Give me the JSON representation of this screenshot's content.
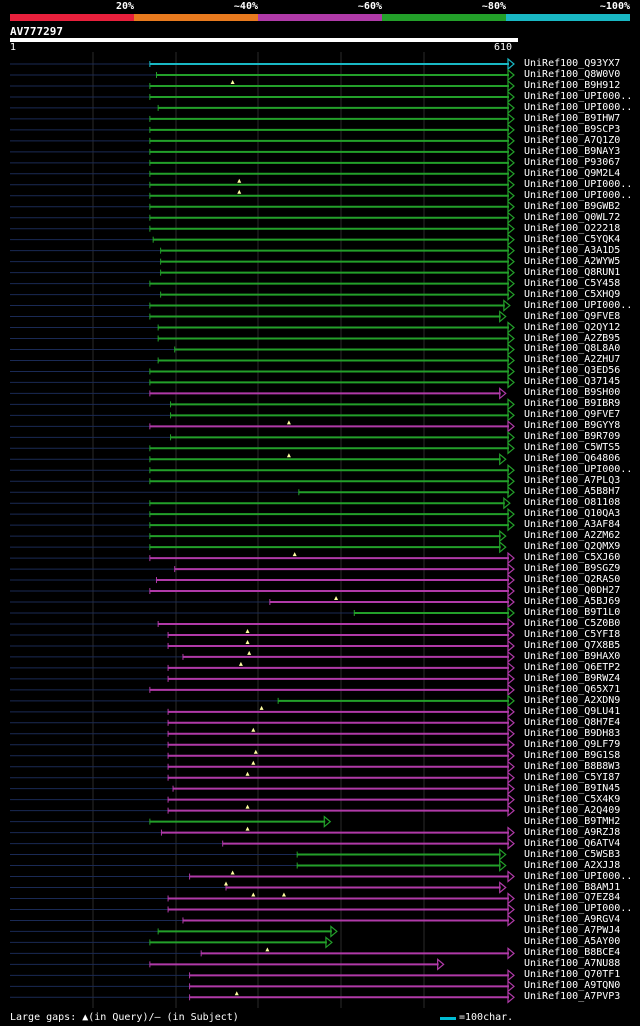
{
  "legend": [
    {
      "label": "20%",
      "color": "#e8203c"
    },
    {
      "label": "~40%",
      "color": "#e87a1e"
    },
    {
      "label": "~60%",
      "color": "#b03aa8"
    },
    {
      "label": "~80%",
      "color": "#23a02a"
    },
    {
      "label": "~100%",
      "color": "#19b8c4"
    }
  ],
  "query": {
    "name": "AV777297",
    "start": "1",
    "end": "610",
    "length": 610
  },
  "footer": {
    "gaps_text": "Large gaps: ▲(in Query)/– (in Subject)",
    "scale_text": "=100char."
  },
  "hits": [
    {
      "name": "UniRef100_Q93YX7",
      "start": 170,
      "end": 610,
      "color": "cyan",
      "arrow": true,
      "marks": []
    },
    {
      "name": "UniRef100_Q8W0V0",
      "start": 178,
      "end": 610,
      "color": "green",
      "arrow": true,
      "marks": []
    },
    {
      "name": "UniRef100_B9H912",
      "start": 170,
      "end": 610,
      "color": "green",
      "arrow": true,
      "marks": [
        270
      ]
    },
    {
      "name": "UniRef100_UPI000..",
      "start": 170,
      "end": 610,
      "color": "green",
      "arrow": true,
      "marks": []
    },
    {
      "name": "UniRef100_UPI000..",
      "start": 180,
      "end": 610,
      "color": "green",
      "arrow": true,
      "marks": []
    },
    {
      "name": "UniRef100_B9IHW7",
      "start": 170,
      "end": 610,
      "color": "green",
      "arrow": true,
      "marks": []
    },
    {
      "name": "UniRef100_B9SCP3",
      "start": 170,
      "end": 610,
      "color": "green",
      "arrow": true,
      "marks": []
    },
    {
      "name": "UniRef100_A7Q1Z0",
      "start": 170,
      "end": 610,
      "color": "green",
      "arrow": true,
      "marks": []
    },
    {
      "name": "UniRef100_B9NAY3",
      "start": 170,
      "end": 610,
      "color": "green",
      "arrow": true,
      "marks": []
    },
    {
      "name": "UniRef100_P93067",
      "start": 170,
      "end": 610,
      "color": "green",
      "arrow": true,
      "marks": []
    },
    {
      "name": "UniRef100_Q9M2L4",
      "start": 170,
      "end": 610,
      "color": "green",
      "arrow": true,
      "marks": []
    },
    {
      "name": "UniRef100_UPI000..",
      "start": 170,
      "end": 610,
      "color": "green",
      "arrow": true,
      "marks": [
        278
      ]
    },
    {
      "name": "UniRef100_UPI000..",
      "start": 170,
      "end": 610,
      "color": "green",
      "arrow": true,
      "marks": [
        278
      ]
    },
    {
      "name": "UniRef100_B9GWB2",
      "start": 170,
      "end": 610,
      "color": "green",
      "arrow": true,
      "marks": []
    },
    {
      "name": "UniRef100_Q0WL72",
      "start": 170,
      "end": 610,
      "color": "green",
      "arrow": true,
      "marks": []
    },
    {
      "name": "UniRef100_O22218",
      "start": 170,
      "end": 610,
      "color": "green",
      "arrow": true,
      "marks": []
    },
    {
      "name": "UniRef100_C5YQK4",
      "start": 174,
      "end": 610,
      "color": "green",
      "arrow": true,
      "marks": []
    },
    {
      "name": "UniRef100_A3A1D5",
      "start": 183,
      "end": 610,
      "color": "green",
      "arrow": true,
      "marks": []
    },
    {
      "name": "UniRef100_A2WYW5",
      "start": 183,
      "end": 610,
      "color": "green",
      "arrow": true,
      "marks": []
    },
    {
      "name": "UniRef100_Q8RUN1",
      "start": 183,
      "end": 610,
      "color": "green",
      "arrow": true,
      "marks": []
    },
    {
      "name": "UniRef100_C5Y458",
      "start": 170,
      "end": 610,
      "color": "green",
      "arrow": true,
      "marks": []
    },
    {
      "name": "UniRef100_C5XHQ9",
      "start": 183,
      "end": 610,
      "color": "green",
      "arrow": true,
      "marks": []
    },
    {
      "name": "UniRef100_UPI000..",
      "start": 170,
      "end": 605,
      "color": "green",
      "arrow": true,
      "marks": []
    },
    {
      "name": "UniRef100_Q9FVE8",
      "start": 170,
      "end": 600,
      "color": "green",
      "arrow": true,
      "marks": []
    },
    {
      "name": "UniRef100_Q2QY12",
      "start": 180,
      "end": 610,
      "color": "green",
      "arrow": true,
      "marks": []
    },
    {
      "name": "UniRef100_A2ZB95",
      "start": 180,
      "end": 610,
      "color": "green",
      "arrow": true,
      "marks": []
    },
    {
      "name": "UniRef100_Q8L8A0",
      "start": 200,
      "end": 610,
      "color": "green",
      "arrow": true,
      "marks": []
    },
    {
      "name": "UniRef100_A2ZHU7",
      "start": 180,
      "end": 610,
      "color": "green",
      "arrow": true,
      "marks": []
    },
    {
      "name": "UniRef100_Q3ED56",
      "start": 170,
      "end": 610,
      "color": "green",
      "arrow": true,
      "marks": []
    },
    {
      "name": "UniRef100_Q37145",
      "start": 170,
      "end": 610,
      "color": "green",
      "arrow": true,
      "marks": []
    },
    {
      "name": "UniRef100_B9SH00",
      "start": 170,
      "end": 600,
      "color": "purple",
      "arrow": true,
      "marks": []
    },
    {
      "name": "UniRef100_B9IBR9",
      "start": 195,
      "end": 610,
      "color": "green",
      "arrow": true,
      "marks": []
    },
    {
      "name": "UniRef100_Q9FVE7",
      "start": 195,
      "end": 610,
      "color": "green",
      "arrow": true,
      "marks": []
    },
    {
      "name": "UniRef100_B9GYY8",
      "start": 170,
      "end": 610,
      "color": "purple",
      "arrow": true,
      "marks": [
        338
      ]
    },
    {
      "name": "UniRef100_B9R709",
      "start": 195,
      "end": 610,
      "color": "green",
      "arrow": true,
      "marks": []
    },
    {
      "name": "UniRef100_C5WTS5",
      "start": 170,
      "end": 610,
      "color": "green",
      "arrow": true,
      "marks": []
    },
    {
      "name": "UniRef100_Q64806",
      "start": 170,
      "end": 600,
      "color": "green",
      "arrow": true,
      "marks": [
        338
      ]
    },
    {
      "name": "UniRef100_UPI000..",
      "start": 170,
      "end": 610,
      "color": "green",
      "arrow": true,
      "marks": []
    },
    {
      "name": "UniRef100_A7PLQ3",
      "start": 170,
      "end": 610,
      "color": "green",
      "arrow": true,
      "marks": []
    },
    {
      "name": "UniRef100_A5B8H7",
      "start": 350,
      "end": 610,
      "color": "green",
      "arrow": true,
      "marks": []
    },
    {
      "name": "UniRef100_O81108",
      "start": 170,
      "end": 605,
      "color": "green",
      "arrow": true,
      "marks": []
    },
    {
      "name": "UniRef100_Q10QA3",
      "start": 170,
      "end": 610,
      "color": "green",
      "arrow": true,
      "marks": []
    },
    {
      "name": "UniRef100_A3AF84",
      "start": 170,
      "end": 610,
      "color": "green",
      "arrow": true,
      "marks": []
    },
    {
      "name": "UniRef100_A2ZM62",
      "start": 170,
      "end": 600,
      "color": "green",
      "arrow": true,
      "marks": []
    },
    {
      "name": "UniRef100_Q2QMX9",
      "start": 170,
      "end": 600,
      "color": "green",
      "arrow": true,
      "marks": []
    },
    {
      "name": "UniRef100_C5XJ60",
      "start": 170,
      "end": 610,
      "color": "purple",
      "arrow": true,
      "marks": [
        345
      ]
    },
    {
      "name": "UniRef100_B9SGZ9",
      "start": 200,
      "end": 610,
      "color": "purple",
      "arrow": true,
      "marks": []
    },
    {
      "name": "UniRef100_Q2RAS0",
      "start": 178,
      "end": 610,
      "color": "purple",
      "arrow": true,
      "marks": []
    },
    {
      "name": "UniRef100_Q0DH27",
      "start": 170,
      "end": 610,
      "color": "purple",
      "arrow": true,
      "marks": []
    },
    {
      "name": "UniRef100_A5BJ69",
      "start": 315,
      "end": 610,
      "color": "purple",
      "arrow": true,
      "marks": [
        395
      ]
    },
    {
      "name": "UniRef100_B9T1L0",
      "start": 417,
      "end": 610,
      "color": "green",
      "arrow": true,
      "marks": []
    },
    {
      "name": "UniRef100_C5Z0B0",
      "start": 180,
      "end": 610,
      "color": "purple",
      "arrow": true,
      "marks": []
    },
    {
      "name": "UniRef100_C5YFI8",
      "start": 192,
      "end": 610,
      "color": "purple",
      "arrow": true,
      "marks": [
        288
      ]
    },
    {
      "name": "UniRef100_Q7X8B5",
      "start": 192,
      "end": 610,
      "color": "purple",
      "arrow": true,
      "marks": [
        288
      ]
    },
    {
      "name": "UniRef100_B9HAX0",
      "start": 210,
      "end": 610,
      "color": "purple",
      "arrow": true,
      "marks": [
        290
      ]
    },
    {
      "name": "UniRef100_Q6ETP2",
      "start": 192,
      "end": 610,
      "color": "purple",
      "arrow": true,
      "marks": [
        280
      ]
    },
    {
      "name": "UniRef100_B9RWZ4",
      "start": 192,
      "end": 610,
      "color": "purple",
      "arrow": true,
      "marks": []
    },
    {
      "name": "UniRef100_Q65X71",
      "start": 170,
      "end": 610,
      "color": "purple",
      "arrow": true,
      "marks": []
    },
    {
      "name": "UniRef100_A2XDN9",
      "start": 325,
      "end": 610,
      "color": "green",
      "arrow": true,
      "marks": []
    },
    {
      "name": "UniRef100_Q9LU41",
      "start": 192,
      "end": 610,
      "color": "purple",
      "arrow": true,
      "marks": [
        305
      ]
    },
    {
      "name": "UniRef100_Q8H7E4",
      "start": 192,
      "end": 610,
      "color": "purple",
      "arrow": true,
      "marks": []
    },
    {
      "name": "UniRef100_B9DH83",
      "start": 192,
      "end": 610,
      "color": "purple",
      "arrow": true,
      "marks": [
        295
      ]
    },
    {
      "name": "UniRef100_Q9LF79",
      "start": 192,
      "end": 610,
      "color": "purple",
      "arrow": true,
      "marks": []
    },
    {
      "name": "UniRef100_B9G1S8",
      "start": 192,
      "end": 610,
      "color": "purple",
      "arrow": true,
      "marks": [
        298
      ]
    },
    {
      "name": "UniRef100_B8B8W3",
      "start": 192,
      "end": 610,
      "color": "purple",
      "arrow": true,
      "marks": [
        295
      ]
    },
    {
      "name": "UniRef100_C5YI87",
      "start": 192,
      "end": 610,
      "color": "purple",
      "arrow": true,
      "marks": [
        288
      ]
    },
    {
      "name": "UniRef100_B9IN45",
      "start": 198,
      "end": 610,
      "color": "purple",
      "arrow": true,
      "marks": []
    },
    {
      "name": "UniRef100_C5X4K9",
      "start": 192,
      "end": 610,
      "color": "purple",
      "arrow": true,
      "marks": []
    },
    {
      "name": "UniRef100_A2Q409",
      "start": 192,
      "end": 610,
      "color": "purple",
      "arrow": true,
      "marks": [
        288
      ]
    },
    {
      "name": "UniRef100_B9TMH2",
      "start": 170,
      "end": 388,
      "color": "green",
      "arrow": true,
      "marks": []
    },
    {
      "name": "UniRef100_A9RZJ8",
      "start": 184,
      "end": 610,
      "color": "purple",
      "arrow": true,
      "marks": [
        288
      ]
    },
    {
      "name": "UniRef100_Q6ATV4",
      "start": 258,
      "end": 610,
      "color": "purple",
      "arrow": true,
      "marks": []
    },
    {
      "name": "UniRef100_C5WSB3",
      "start": 348,
      "end": 600,
      "color": "green",
      "arrow": true,
      "marks": []
    },
    {
      "name": "UniRef100_A2XJJ8",
      "start": 348,
      "end": 600,
      "color": "green",
      "arrow": true,
      "marks": []
    },
    {
      "name": "UniRef100_UPI000..",
      "start": 218,
      "end": 610,
      "color": "purple",
      "arrow": true,
      "marks": [
        270
      ]
    },
    {
      "name": "UniRef100_B8AMJ1",
      "start": 262,
      "end": 600,
      "color": "purple",
      "arrow": true,
      "marks": [
        262
      ]
    },
    {
      "name": "UniRef100_Q7EZ84",
      "start": 192,
      "end": 610,
      "color": "purple",
      "arrow": true,
      "marks": [
        295,
        332
      ]
    },
    {
      "name": "UniRef100_UPI000..",
      "start": 192,
      "end": 610,
      "color": "purple",
      "arrow": true,
      "marks": []
    },
    {
      "name": "UniRef100_A9RGV4",
      "start": 210,
      "end": 610,
      "color": "purple",
      "arrow": true,
      "marks": []
    },
    {
      "name": "UniRef100_A7PWJ4",
      "start": 180,
      "end": 396,
      "color": "green",
      "arrow": true,
      "marks": []
    },
    {
      "name": "UniRef100_A5AY00",
      "start": 170,
      "end": 390,
      "color": "green",
      "arrow": true,
      "marks": []
    },
    {
      "name": "UniRef100_B8BCE4",
      "start": 232,
      "end": 610,
      "color": "purple",
      "arrow": true,
      "marks": [
        312
      ]
    },
    {
      "name": "UniRef100_A7NU88",
      "start": 170,
      "end": 525,
      "color": "purple",
      "arrow": true,
      "marks": []
    },
    {
      "name": "UniRef100_Q70TF1",
      "start": 218,
      "end": 610,
      "color": "purple",
      "arrow": true,
      "marks": []
    },
    {
      "name": "UniRef100_A9TQN0",
      "start": 218,
      "end": 610,
      "color": "purple",
      "arrow": true,
      "marks": []
    },
    {
      "name": "UniRef100_A7PVP3",
      "start": 218,
      "end": 610,
      "color": "purple",
      "arrow": true,
      "marks": [
        275
      ]
    }
  ]
}
